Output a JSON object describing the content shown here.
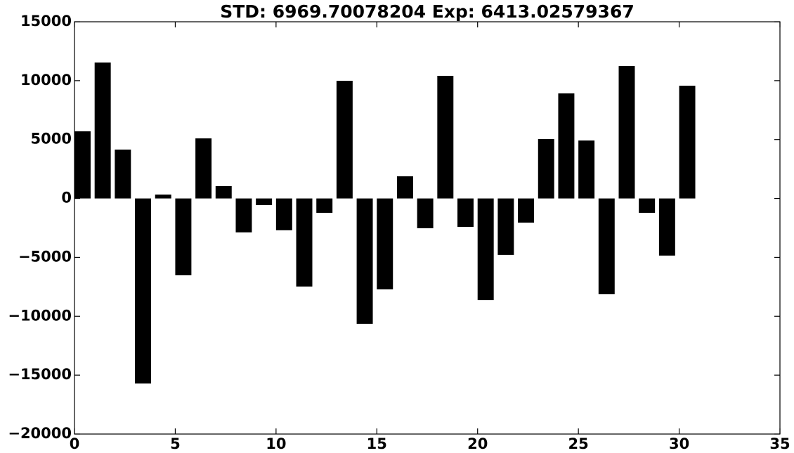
{
  "chart_data": {
    "type": "bar",
    "title": "STD: 6969.70078204 Exp: 6413.02579367",
    "x": [
      0,
      1,
      2,
      3,
      4,
      5,
      6,
      7,
      8,
      9,
      10,
      11,
      12,
      13,
      14,
      15,
      16,
      17,
      18,
      19,
      20,
      21,
      22,
      23,
      24,
      25,
      26,
      27,
      28,
      29,
      30
    ],
    "values": [
      5700,
      11540,
      4150,
      -15710,
      330,
      -6520,
      5100,
      1050,
      -2880,
      -560,
      -2700,
      -7480,
      -1220,
      9990,
      -10640,
      -7720,
      1880,
      -2530,
      10410,
      -2410,
      -8620,
      -4790,
      -2050,
      5040,
      8920,
      4920,
      -8130,
      11240,
      -1220,
      -4850,
      9570
    ],
    "color": "#000000",
    "xlim": [
      0,
      35
    ],
    "xticks": [
      0,
      5,
      10,
      15,
      20,
      25,
      30,
      35
    ],
    "ylim": [
      -20000,
      15000
    ],
    "yticks": [
      {
        "value": -20000,
        "label": "−20000"
      },
      {
        "value": -15000,
        "label": "−15000"
      },
      {
        "value": -10000,
        "label": "−10000"
      },
      {
        "value": -5000,
        "label": "−5000"
      },
      0,
      5000,
      10000,
      15000
    ],
    "grid": false
  }
}
